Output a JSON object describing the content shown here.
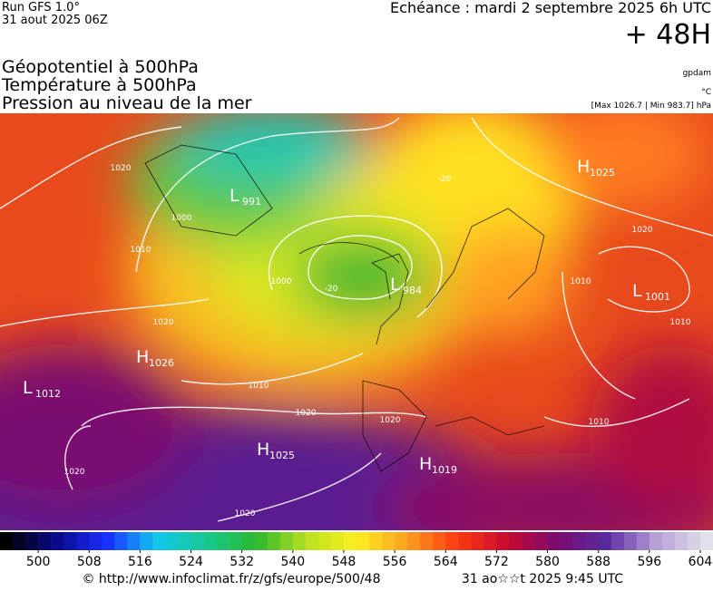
{
  "header": {
    "run": "Run GFS 1.0°",
    "run_date": "31 aout 2025 06Z",
    "valid": "Echéance : mardi 2 septembre 2025 6h UTC",
    "lead": "+ 48H",
    "titles": [
      "Géopotentiel à 500hPa",
      "Température à 500hPa",
      "Pression au niveau de la mer"
    ],
    "unit_geo": "gpdam",
    "unit_temp": "°C",
    "pressure_range": "[Max 1026.7 | Min 983.7] hPa"
  },
  "pressure_centers": [
    {
      "letter": "L",
      "value": 991
    },
    {
      "letter": "L",
      "value": 984
    },
    {
      "letter": "H",
      "value": 1025
    },
    {
      "letter": "L",
      "value": 1001
    },
    {
      "letter": "H",
      "value": 1026
    },
    {
      "letter": "L",
      "value": 1012
    },
    {
      "letter": "H",
      "value": 1025
    },
    {
      "letter": "H",
      "value": 1019
    }
  ],
  "contour_labels": [
    1020,
    1010,
    1000,
    1000,
    1020,
    1010,
    1020,
    1020,
    1020,
    1020,
    1020,
    1010,
    1010,
    1010,
    -20,
    -20
  ],
  "colorbar": {
    "range": [
      494,
      606
    ],
    "step": 2,
    "ticks": [
      500,
      508,
      516,
      524,
      532,
      540,
      548,
      556,
      564,
      572,
      580,
      588,
      596,
      604
    ],
    "stops": [
      "#000000",
      "#0a0a8a",
      "#1a2cff",
      "#12c8f0",
      "#18c890",
      "#2cb82c",
      "#b8e020",
      "#fff020",
      "#ffa020",
      "#ff3a10",
      "#c80a30",
      "#7a0a70",
      "#5a2aa0",
      "#b8a0d8",
      "#e0e0e8"
    ]
  },
  "footer": {
    "source": "© http://www.infoclimat.fr/z/gfs/europe/500/48",
    "generated": "31 ao☆☆t 2025  9:45 UTC"
  }
}
